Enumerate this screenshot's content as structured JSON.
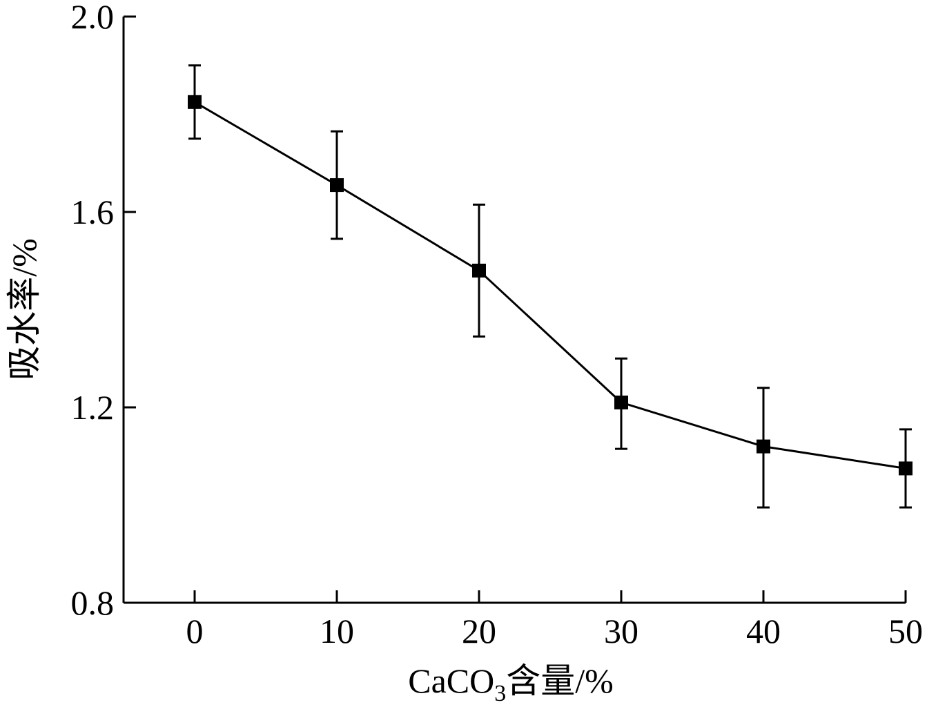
{
  "chart_data": {
    "type": "line",
    "title": "",
    "xlabel": "CaCO",
    "xlabel_sub": "3",
    "xlabel_suffix": "含量/%",
    "ylabel": "吸水率/%",
    "xlim": [
      -5,
      50
    ],
    "ylim": [
      0.8,
      2.0
    ],
    "x_ticks": [
      0,
      10,
      20,
      30,
      40,
      50
    ],
    "x_tick_labels": [
      "0",
      "10",
      "20",
      "30",
      "40",
      "50"
    ],
    "y_ticks": [
      0.8,
      1.2,
      1.6,
      2.0
    ],
    "y_tick_labels": [
      "0.8",
      "1.2",
      "1.6",
      "2.0"
    ],
    "grid": false,
    "marker": "square",
    "series": [
      {
        "x": [
          0,
          10,
          20,
          30,
          40,
          50
        ],
        "y": [
          1.825,
          1.655,
          1.48,
          1.21,
          1.12,
          1.075
        ],
        "err_upper": [
          1.9,
          1.765,
          1.615,
          1.3,
          1.24,
          1.155
        ],
        "err_lower": [
          1.75,
          1.545,
          1.345,
          1.115,
          0.995,
          0.995
        ]
      }
    ]
  }
}
